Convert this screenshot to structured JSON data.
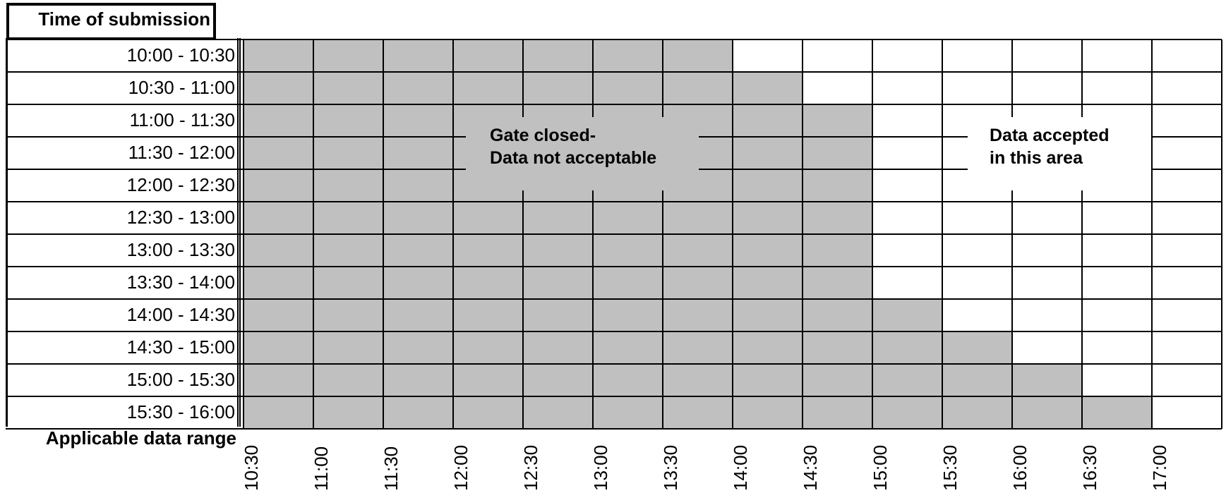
{
  "header": {
    "title": "Time of submission"
  },
  "footer": {
    "label": "Applicable data range"
  },
  "rows": [
    "10:00 - 10:30",
    "10:30 - 11:00",
    "11:00 - 11:30",
    "11:30 - 12:00",
    "12:00 - 12:30",
    "12:30 - 13:00",
    "13:00 - 13:30",
    "13:30 - 14:00",
    "14:00 - 14:30",
    "14:30 - 15:00",
    "15:00 - 15:30",
    "15:30 - 16:00"
  ],
  "columns": [
    "10:30",
    "11:00",
    "11:30",
    "12:00",
    "12:30",
    "13:00",
    "13:30",
    "14:00",
    "14:30",
    "15:00",
    "15:30",
    "16:00",
    "16:30",
    "17:00"
  ],
  "closed_columns_per_row": [
    7,
    8,
    9,
    9,
    9,
    9,
    9,
    9,
    10,
    11,
    12,
    13
  ],
  "callouts": {
    "closed": {
      "line1": "Gate closed-",
      "line2": "Data not acceptable"
    },
    "accepted": {
      "line1": "Data accepted",
      "line2": "in this area"
    }
  },
  "colors": {
    "closed_fill": "#c0c0c0",
    "open_fill": "#ffffff",
    "grid_line": "#000000"
  }
}
